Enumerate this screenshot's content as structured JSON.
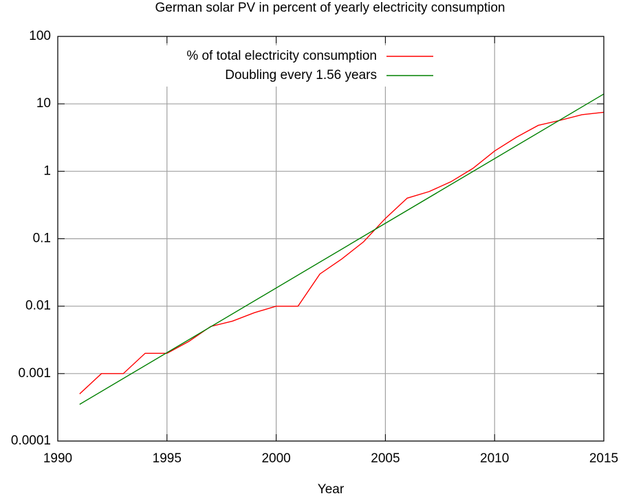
{
  "chart_data": {
    "type": "line",
    "title": "German solar PV in percent of yearly electricity consumption",
    "x_label": "Year",
    "series": [
      {
        "name": "% of total electricity consumption",
        "color": "#ff0000",
        "x": [
          1991,
          1992,
          1993,
          1994,
          1995,
          1996,
          1997,
          1998,
          1999,
          2000,
          2001,
          2002,
          2003,
          2004,
          2005,
          2006,
          2007,
          2008,
          2009,
          2010,
          2011,
          2012,
          2013,
          2014,
          2015
        ],
        "values": [
          0.0005,
          0.001,
          0.001,
          0.002,
          0.002,
          0.003,
          0.005,
          0.006,
          0.008,
          0.01,
          0.01,
          0.03,
          0.05,
          0.09,
          0.2,
          0.4,
          0.5,
          0.7,
          1.1,
          2,
          3.2,
          4.8,
          5.7,
          6.9,
          7.5
        ]
      },
      {
        "name": "Doubling every 1.56 years",
        "color": "#008000",
        "x": [
          1991,
          2015
        ],
        "values": [
          0.00035,
          14
        ]
      }
    ],
    "xlim": [
      1990,
      2015
    ],
    "xticks": [
      1990,
      1995,
      2000,
      2005,
      2010,
      2015
    ],
    "ylim": [
      0.0001,
      100
    ],
    "yticks": [
      0.0001,
      0.001,
      0.01,
      0.1,
      1,
      10,
      100
    ],
    "log_y": true,
    "grid": true,
    "legend": "top-left"
  }
}
